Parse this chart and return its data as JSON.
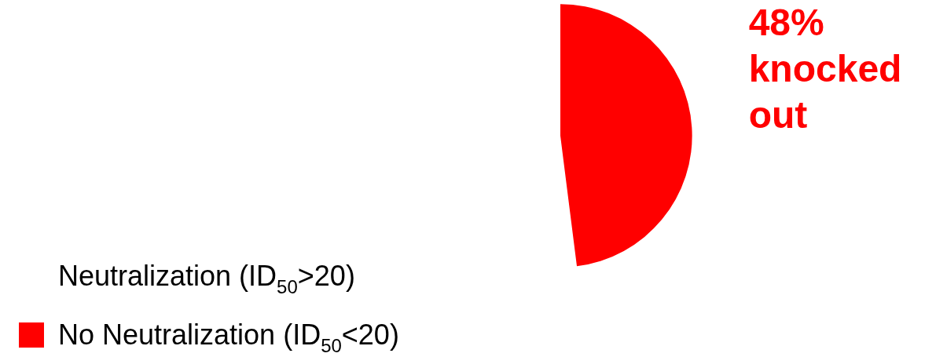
{
  "chart_data": {
    "type": "pie",
    "categories": [
      "Neutralization (ID$_{50}$>20)",
      "No Neutralization (ID$_{50}$<20)"
    ],
    "values": [
      null,
      48
    ],
    "colors": [
      "#ffffff",
      "#ff0000"
    ],
    "value_labels": [
      null,
      "48% knocked out"
    ],
    "legend": "bottom left"
  }
}
